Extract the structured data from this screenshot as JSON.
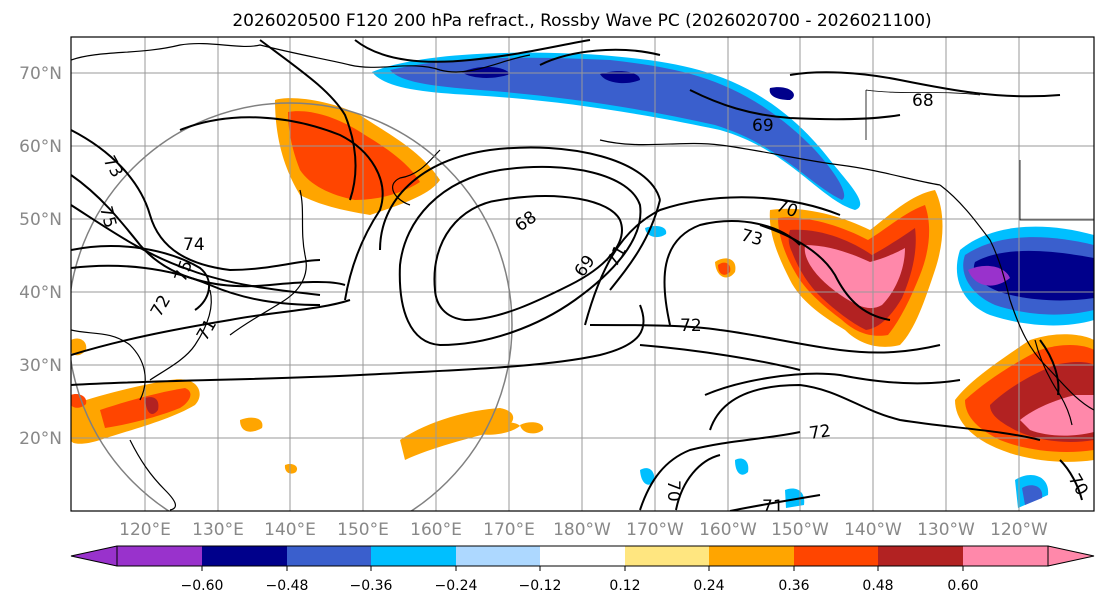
{
  "title": "2026020500 F120 200 hPa refract., Rossby Wave PC (2026020700 - 2026021100)",
  "map": {
    "lon_range": [
      110,
      -118
    ],
    "lat_range": [
      10,
      75
    ],
    "lat_labels": [
      "70°N",
      "60°N",
      "50°N",
      "40°N",
      "30°N",
      "20°N"
    ],
    "lon_labels": [
      "120°E",
      "130°E",
      "140°E",
      "150°E",
      "160°E",
      "170°E",
      "180°W",
      "170°W",
      "160°W",
      "150°W",
      "140°W",
      "130°W",
      "120°W"
    ],
    "contour_labels": [
      "73",
      "75",
      "74",
      "75",
      "72",
      "71",
      "68",
      "69",
      "71",
      "70",
      "73",
      "72",
      "68",
      "69",
      "72",
      "70",
      "71",
      "70"
    ]
  },
  "colorbar": {
    "ticks": [
      "−0.60",
      "−0.48",
      "−0.36",
      "−0.24",
      "−0.12",
      "0.12",
      "0.24",
      "0.36",
      "0.48",
      "0.60"
    ],
    "colors": [
      "#9932cc",
      "#00008b",
      "#3a5fcd",
      "#00bfff",
      "#add8ff",
      "#ffffff",
      "#ffe680",
      "#ffa500",
      "#ff4500",
      "#b22222",
      "#ff88aa"
    ],
    "extend_low": "#9932cc",
    "extend_high": "#ff88aa"
  },
  "palette": {
    "purple": "#9932cc",
    "navy": "#00008b",
    "blue": "#3a5fcd",
    "cyan": "#00bfff",
    "yellow": "#ffe680",
    "orange": "#ffa500",
    "redorange": "#ff4500",
    "firebrick": "#b22222",
    "pink": "#ff88aa"
  }
}
